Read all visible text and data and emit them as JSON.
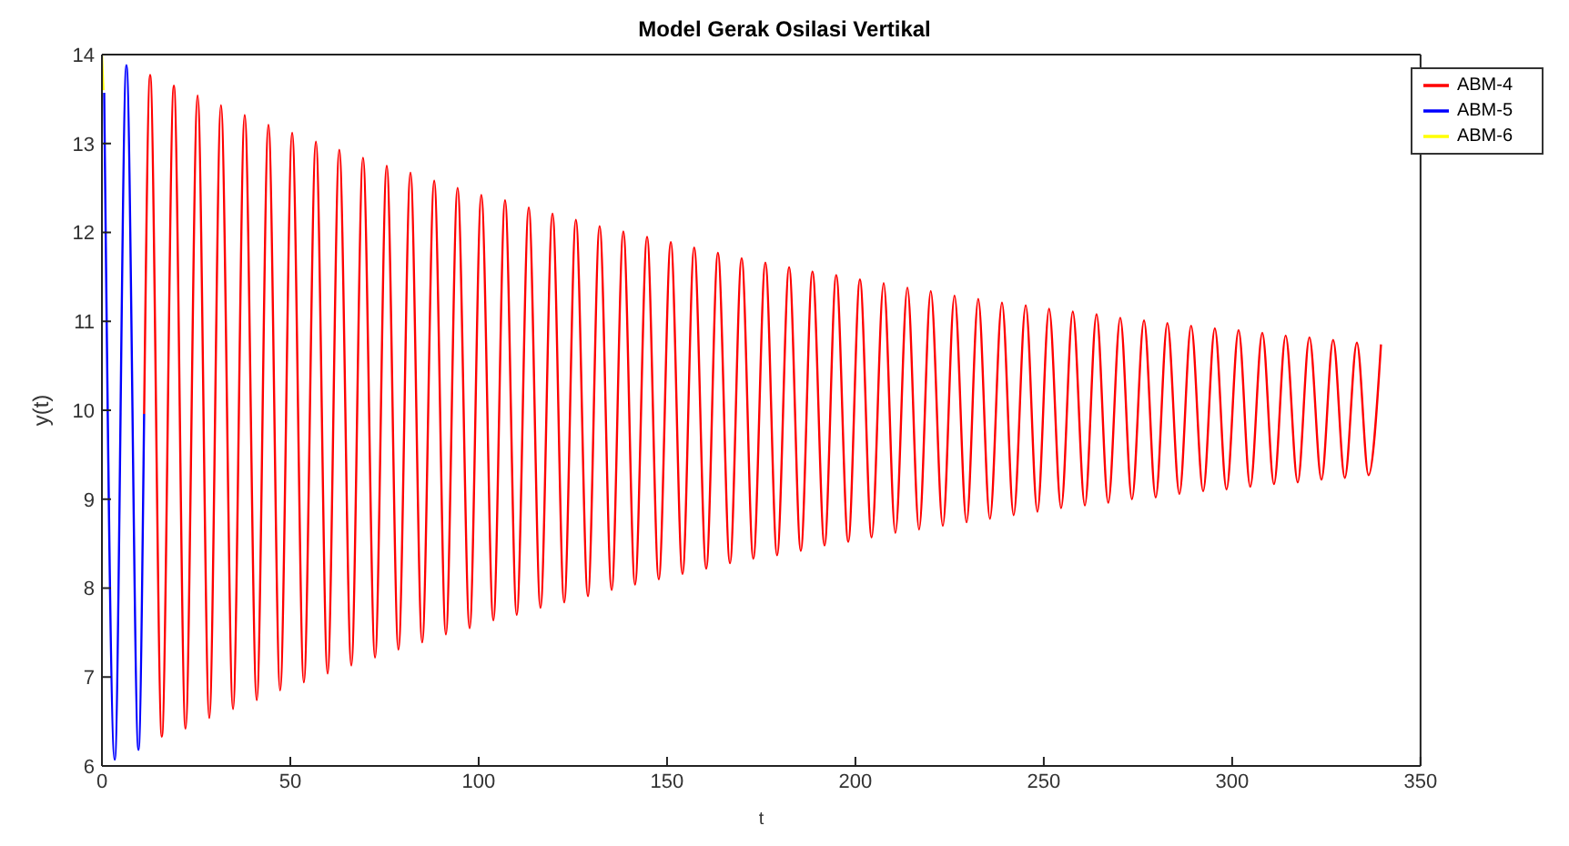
{
  "chart_data": {
    "type": "line",
    "title": "Model Gerak Osilasi Vertikal",
    "xlabel": "t",
    "ylabel": "y(t)",
    "xlim": [
      0,
      350
    ],
    "xticks": [
      0,
      50,
      100,
      150,
      200,
      250,
      300,
      350
    ],
    "ylim": [
      6,
      14
    ],
    "yticks": [
      6,
      7,
      8,
      9,
      10,
      11,
      12,
      13,
      14
    ],
    "legend": "top right",
    "marker": "none",
    "line_style": "solid",
    "series": [
      {
        "name": "ABM-4",
        "color": "#ff0000",
        "x": [
          11.2,
          12.8,
          15.9,
          19.1,
          22.2,
          25.4,
          28.5,
          31.6,
          34.8,
          37.9,
          41.1,
          44.2,
          47.3,
          50.5,
          53.6,
          56.8,
          59.9,
          63.0,
          66.2,
          69.3,
          72.5,
          75.6,
          78.7,
          81.9,
          85.0,
          88.2,
          91.3,
          94.4,
          97.6,
          100.7,
          103.9,
          107.0,
          110.1,
          113.3,
          116.4,
          119.6,
          122.7,
          125.8,
          129.0,
          132.1,
          135.3,
          138.4,
          141.5,
          144.7,
          147.8,
          151.0,
          154.1,
          157.2,
          160.4,
          163.5,
          166.7,
          169.8,
          172.9,
          176.1,
          179.2,
          182.4,
          185.5,
          188.6,
          191.8,
          194.9,
          198.1,
          201.2,
          204.3,
          207.5,
          210.6,
          213.8,
          216.9,
          220.0,
          223.2,
          226.3,
          229.5,
          232.6,
          235.7,
          238.9,
          242.0,
          245.2,
          248.3,
          251.4,
          254.6,
          257.7,
          260.9,
          264.0,
          267.1,
          270.3,
          273.4,
          276.6,
          279.7,
          282.8,
          286.0,
          289.1,
          292.3,
          295.4,
          298.5,
          301.7,
          304.8,
          308.0,
          311.1,
          314.2,
          317.4,
          320.5,
          323.7,
          326.8,
          329.9,
          333.1,
          336.2,
          339.5
        ],
        "values": [
          9.96,
          13.77,
          6.33,
          13.65,
          6.42,
          13.54,
          6.54,
          13.43,
          6.64,
          13.32,
          6.74,
          13.21,
          6.85,
          13.12,
          6.94,
          13.02,
          7.04,
          12.93,
          7.13,
          12.84,
          7.22,
          12.75,
          7.31,
          12.67,
          7.39,
          12.58,
          7.48,
          12.5,
          7.55,
          12.42,
          7.64,
          12.36,
          7.7,
          12.28,
          7.78,
          12.21,
          7.84,
          12.14,
          7.91,
          12.07,
          7.98,
          12.01,
          8.04,
          11.95,
          8.1,
          11.89,
          8.16,
          11.83,
          8.22,
          11.77,
          8.28,
          11.71,
          8.33,
          11.66,
          8.37,
          11.61,
          8.42,
          11.56,
          8.48,
          11.52,
          8.52,
          11.47,
          8.57,
          11.43,
          8.62,
          11.38,
          8.66,
          11.34,
          8.7,
          11.29,
          8.74,
          11.25,
          8.78,
          11.21,
          8.82,
          11.18,
          8.86,
          11.14,
          8.9,
          11.11,
          8.93,
          11.08,
          8.96,
          11.04,
          9.0,
          11.01,
          9.02,
          10.98,
          9.06,
          10.95,
          9.09,
          10.92,
          9.11,
          10.9,
          9.14,
          10.87,
          9.17,
          10.84,
          9.19,
          10.82,
          9.22,
          10.79,
          9.24,
          10.76,
          9.27,
          10.74
        ]
      },
      {
        "name": "ABM-5",
        "color": "#0000ff",
        "x": [
          0.6,
          3.4,
          6.5,
          9.7,
          11.2
        ],
        "values": [
          13.57,
          6.07,
          13.88,
          6.18,
          9.96
        ]
      },
      {
        "name": "ABM-6",
        "color": "#ffff00",
        "x": [
          0,
          0.4
        ],
        "values": [
          14,
          13.6
        ]
      }
    ]
  }
}
